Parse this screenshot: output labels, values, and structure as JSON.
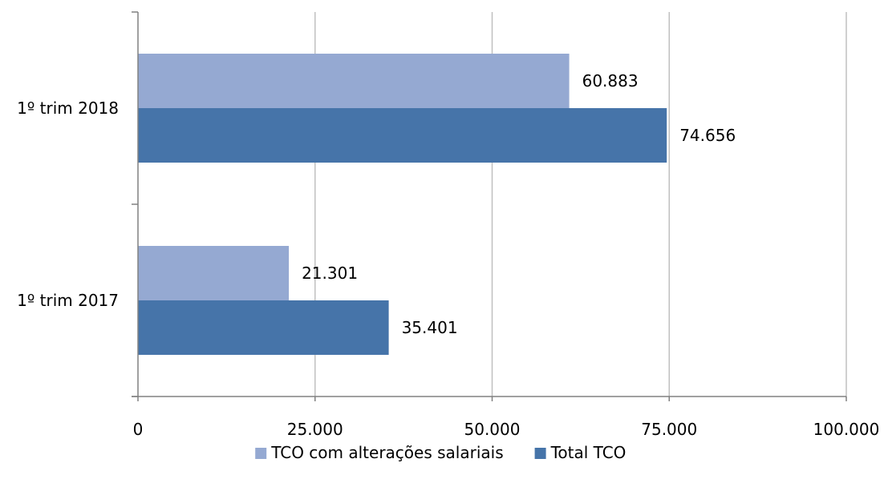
{
  "chart_data": {
    "type": "bar",
    "orientation": "horizontal",
    "categories": [
      "1º trim 2017",
      "1º trim 2018"
    ],
    "series": [
      {
        "name": "TCO com alterações salariais",
        "values": [
          21301,
          60883
        ],
        "value_labels": [
          "21.301",
          "60.883"
        ],
        "color": "#95A9D2"
      },
      {
        "name": "Total TCO",
        "values": [
          35401,
          74656
        ],
        "value_labels": [
          "35.401",
          "74.656"
        ],
        "color": "#4674A9"
      }
    ],
    "xlim": [
      0,
      100000
    ],
    "x_ticks": [
      0,
      25000,
      50000,
      75000,
      100000
    ],
    "x_tick_labels": [
      "0",
      "25.000",
      "50.000",
      "75.000",
      "100.000"
    ],
    "grid": true,
    "legend_position": "bottom",
    "axis_color": "#808080",
    "grid_color": "#C0C0C0"
  }
}
